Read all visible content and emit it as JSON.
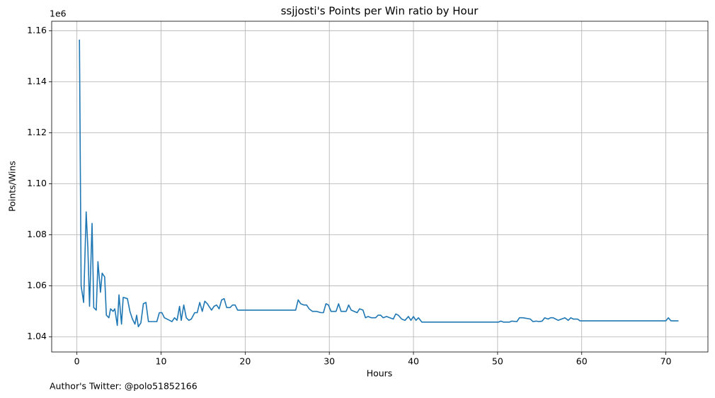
{
  "chart_data": {
    "type": "line",
    "title": "ssjjosti's Points per Win ratio by Hour",
    "xlabel": "Hours",
    "ylabel": "Points/Wins",
    "y_offset_label": "1e6",
    "footer": "Author's Twitter: @polo51852166",
    "color": "#1f77b4",
    "grid": true,
    "xlim": [
      -3,
      75
    ],
    "ylim": [
      1.0341,
      1.1637
    ],
    "xticks": [
      0,
      10,
      20,
      30,
      40,
      50,
      60,
      70
    ],
    "yticks": [
      1.04,
      1.06,
      1.08,
      {
        "value": 1.1,
        "label": "1.10"
      },
      1.12,
      1.14,
      1.16
    ],
    "x": [
      0.3,
      0.5,
      0.8,
      1.1,
      1.3,
      1.5,
      1.8,
      2.0,
      2.3,
      2.5,
      2.8,
      3.0,
      3.3,
      3.5,
      3.8,
      4.0,
      4.3,
      4.5,
      4.8,
      5.0,
      5.3,
      5.5,
      6.0,
      6.3,
      6.6,
      6.9,
      7.1,
      7.3,
      7.6,
      7.9,
      8.2,
      8.5,
      9.5,
      9.8,
      10.1,
      10.4,
      11.0,
      11.3,
      11.6,
      11.9,
      12.2,
      12.4,
      12.7,
      13.0,
      13.3,
      13.6,
      14.0,
      14.3,
      14.6,
      14.9,
      15.2,
      15.5,
      16.0,
      16.3,
      16.6,
      16.9,
      17.2,
      17.5,
      17.8,
      18.2,
      18.5,
      18.8,
      19.1,
      26.0,
      26.3,
      26.6,
      27.0,
      27.3,
      27.6,
      28.0,
      28.5,
      29.0,
      29.3,
      29.6,
      29.9,
      30.2,
      30.8,
      31.1,
      31.4,
      32.0,
      32.3,
      32.6,
      33.3,
      33.6,
      34.0,
      34.3,
      34.6,
      35.0,
      35.5,
      35.8,
      36.1,
      36.4,
      36.8,
      37.2,
      37.6,
      37.9,
      38.2,
      38.6,
      39.0,
      39.4,
      39.7,
      40.0,
      40.3,
      40.6,
      41.0,
      50.1,
      50.4,
      50.7,
      51.4,
      51.7,
      52.3,
      52.6,
      53.0,
      53.9,
      54.2,
      54.6,
      54.9,
      55.3,
      55.6,
      56.0,
      56.3,
      56.6,
      56.9,
      57.2,
      57.6,
      58.0,
      58.4,
      58.7,
      59.0,
      59.5,
      59.8,
      70.0,
      70.3,
      70.6,
      71.5
    ],
    "values": [
      1.1565,
      1.06,
      1.0535,
      1.089,
      1.075,
      1.052,
      1.0845,
      1.0515,
      1.0505,
      1.0695,
      1.0575,
      1.065,
      1.0635,
      1.0485,
      1.0475,
      1.051,
      1.05,
      1.051,
      1.0445,
      1.0565,
      1.045,
      1.0555,
      1.055,
      1.05,
      1.047,
      1.045,
      1.0485,
      1.044,
      1.0455,
      1.053,
      1.0535,
      1.046,
      1.046,
      1.0495,
      1.0495,
      1.0475,
      1.0465,
      1.046,
      1.0475,
      1.0465,
      1.052,
      1.0465,
      1.0525,
      1.0475,
      1.0465,
      1.047,
      1.0495,
      1.0495,
      1.0535,
      1.05,
      1.054,
      1.053,
      1.0505,
      1.052,
      1.0525,
      1.051,
      1.0545,
      1.055,
      1.0515,
      1.0515,
      1.0525,
      1.0525,
      1.0505,
      1.0505,
      1.0545,
      1.053,
      1.0525,
      1.0525,
      1.051,
      1.05,
      1.05,
      1.0495,
      1.0495,
      1.053,
      1.0525,
      1.05,
      1.05,
      1.053,
      1.05,
      1.05,
      1.0525,
      1.0505,
      1.0495,
      1.051,
      1.0505,
      1.0475,
      1.048,
      1.0475,
      1.0475,
      1.0485,
      1.0485,
      1.0475,
      1.048,
      1.0475,
      1.047,
      1.049,
      1.0485,
      1.047,
      1.0465,
      1.048,
      1.0465,
      1.048,
      1.0465,
      1.0475,
      1.0458,
      1.0458,
      1.0462,
      1.0458,
      1.0458,
      1.0462,
      1.046,
      1.0475,
      1.0475,
      1.047,
      1.046,
      1.0462,
      1.046,
      1.0462,
      1.0475,
      1.047,
      1.0475,
      1.0475,
      1.047,
      1.0465,
      1.047,
      1.0475,
      1.0465,
      1.0475,
      1.047,
      1.047,
      1.0463,
      1.0463,
      1.0475,
      1.0463,
      1.0463
    ]
  }
}
